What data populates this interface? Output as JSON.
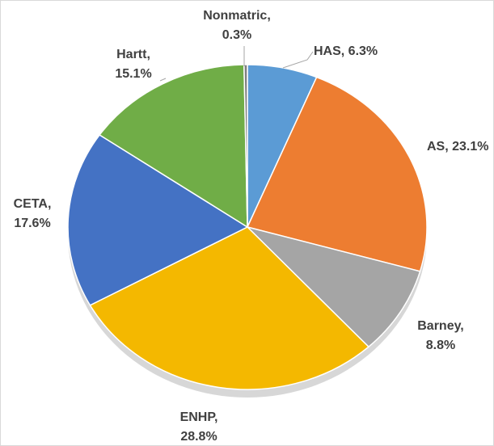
{
  "chart_data": {
    "type": "pie",
    "values": [
      6.3,
      23.1,
      8.8,
      28.8,
      17.6,
      15.1,
      0.3
    ],
    "value_labels": [
      "HAS, 6.3%",
      "AS, 23.1%",
      "Barney, 8.8%",
      "ENHP, 28.8%",
      "CETA, 17.6%",
      "Hartt, 15.1%",
      "Nonmatric, 0.3%"
    ],
    "colors": [
      "#5b9bd5",
      "#ed7d31",
      "#a5a5a5",
      "#f4b800",
      "#4472c4",
      "#70ad47",
      "#7f7f7f"
    ]
  }
}
